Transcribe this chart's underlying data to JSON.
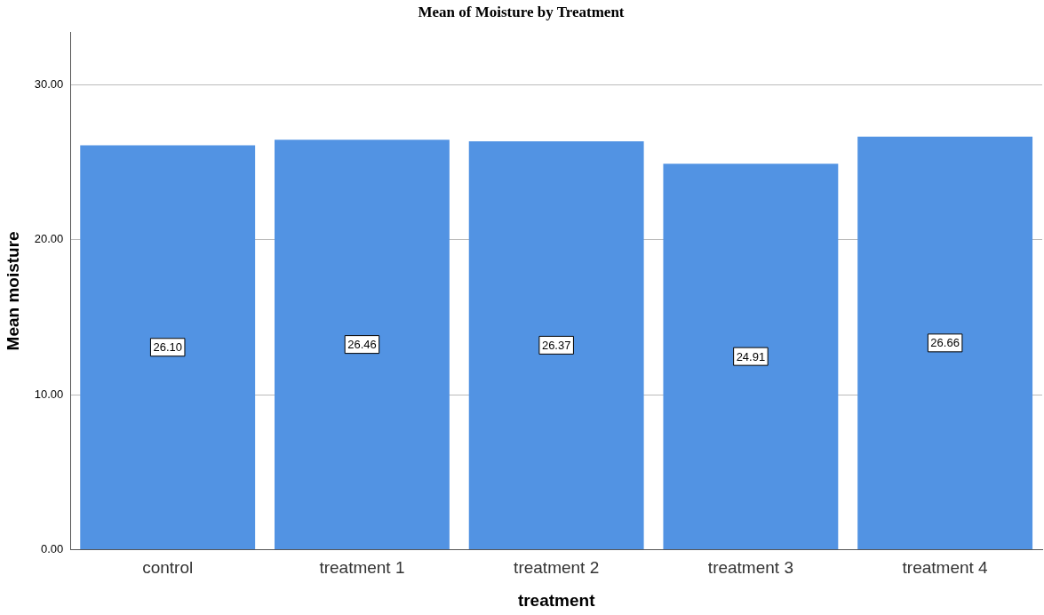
{
  "chart_data": {
    "type": "bar",
    "title": "Mean of Moisture by Treatment",
    "xlabel": "treatment",
    "ylabel": "Mean moisture",
    "categories": [
      "control",
      "treatment 1",
      "treatment 2",
      "treatment 3",
      "treatment 4"
    ],
    "values": [
      26.1,
      26.46,
      26.37,
      24.91,
      26.66
    ],
    "value_labels": [
      "26.10",
      "26.46",
      "26.37",
      "24.91",
      "26.66"
    ],
    "color": "#5293e3",
    "ylim": [
      0,
      33.4
    ],
    "yticks": [
      {
        "value": 0,
        "label": "0.00"
      },
      {
        "value": 10,
        "label": "10.00"
      },
      {
        "value": 20,
        "label": "20.00"
      },
      {
        "value": 30,
        "label": "30.00"
      }
    ],
    "grid": "y",
    "legend": false
  }
}
